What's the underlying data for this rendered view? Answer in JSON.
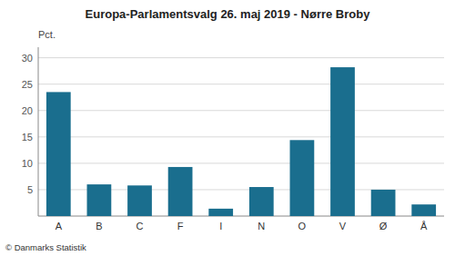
{
  "chart_data": {
    "type": "bar",
    "title": "Europa-Parlamentsvalg 26. maj 2019 - Nørre Broby",
    "categories": [
      "A",
      "B",
      "C",
      "F",
      "I",
      "N",
      "O",
      "V",
      "Ø",
      "Å"
    ],
    "values": [
      23.5,
      6.0,
      5.8,
      9.3,
      1.4,
      5.5,
      14.4,
      28.2,
      5.0,
      2.2
    ],
    "color": "#1a6e8e",
    "ylabel": "Pct.",
    "ylim": [
      0,
      32
    ],
    "yticks": [
      5,
      10,
      15,
      20,
      25,
      30
    ],
    "grid": true,
    "annotations": [
      "© Danmarks Statistik"
    ]
  }
}
